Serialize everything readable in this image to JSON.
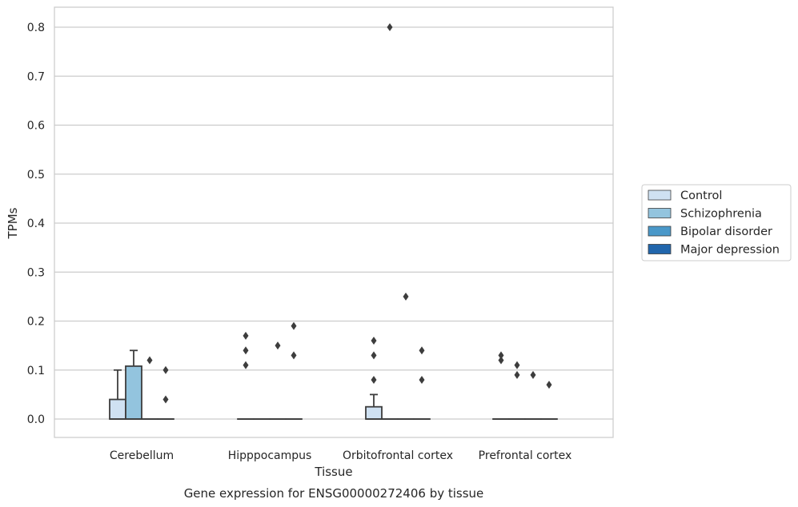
{
  "chart_data": {
    "type": "boxplot",
    "title": "",
    "caption": "Gene expression for ENSG00000272406 by tissue",
    "xlabel": "Tissue",
    "ylabel": "TPMs",
    "ylim": [
      -0.04,
      0.84
    ],
    "yticks": [
      "0.0",
      "0.1",
      "0.2",
      "0.3",
      "0.4",
      "0.5",
      "0.6",
      "0.7",
      "0.8"
    ],
    "grid": "horizontal",
    "legend_position": "right",
    "categories": [
      "Cerebellum",
      "Hipppocampus",
      "Orbitofrontal cortex",
      "Prefrontal cortex"
    ],
    "series": [
      {
        "name": "Control",
        "color": "#cfe1f2",
        "boxes": [
          {
            "q1": 0.0,
            "median": 0.0,
            "q3": 0.04,
            "whisker_low": 0.0,
            "whisker_high": 0.1,
            "outliers": []
          },
          {
            "q1": 0.0,
            "median": 0.0,
            "q3": 0.0,
            "whisker_low": 0.0,
            "whisker_high": 0.0,
            "outliers": [
              0.11,
              0.14,
              0.17
            ]
          },
          {
            "q1": 0.0,
            "median": 0.0,
            "q3": 0.025,
            "whisker_low": 0.0,
            "whisker_high": 0.05,
            "outliers": [
              0.08,
              0.13,
              0.16
            ]
          },
          {
            "q1": 0.0,
            "median": 0.0,
            "q3": 0.0,
            "whisker_low": 0.0,
            "whisker_high": 0.0,
            "outliers": [
              0.12,
              0.13
            ]
          }
        ]
      },
      {
        "name": "Schizophrenia",
        "color": "#93c4de",
        "boxes": [
          {
            "q1": 0.0,
            "median": 0.0,
            "q3": 0.108,
            "whisker_low": 0.0,
            "whisker_high": 0.14,
            "outliers": []
          },
          {
            "q1": 0.0,
            "median": 0.0,
            "q3": 0.0,
            "whisker_low": 0.0,
            "whisker_high": 0.0,
            "outliers": []
          },
          {
            "q1": 0.0,
            "median": 0.0,
            "q3": 0.0,
            "whisker_low": 0.0,
            "whisker_high": 0.0,
            "outliers": [
              0.8
            ]
          },
          {
            "q1": 0.0,
            "median": 0.0,
            "q3": 0.0,
            "whisker_low": 0.0,
            "whisker_high": 0.0,
            "outliers": [
              0.09,
              0.11
            ]
          }
        ]
      },
      {
        "name": "Bipolar disorder",
        "color": "#4a98c9",
        "boxes": [
          {
            "q1": 0.0,
            "median": 0.0,
            "q3": 0.0,
            "whisker_low": 0.0,
            "whisker_high": 0.0,
            "outliers": [
              0.12
            ]
          },
          {
            "q1": 0.0,
            "median": 0.0,
            "q3": 0.0,
            "whisker_low": 0.0,
            "whisker_high": 0.0,
            "outliers": [
              0.15
            ]
          },
          {
            "q1": 0.0,
            "median": 0.0,
            "q3": 0.0,
            "whisker_low": 0.0,
            "whisker_high": 0.0,
            "outliers": [
              0.25
            ]
          },
          {
            "q1": 0.0,
            "median": 0.0,
            "q3": 0.0,
            "whisker_low": 0.0,
            "whisker_high": 0.0,
            "outliers": [
              0.09
            ]
          }
        ]
      },
      {
        "name": "Major depression",
        "color": "#2166ac",
        "boxes": [
          {
            "q1": 0.0,
            "median": 0.0,
            "q3": 0.0,
            "whisker_low": 0.0,
            "whisker_high": 0.0,
            "outliers": [
              0.04,
              0.1
            ]
          },
          {
            "q1": 0.0,
            "median": 0.0,
            "q3": 0.0,
            "whisker_low": 0.0,
            "whisker_high": 0.0,
            "outliers": [
              0.13,
              0.19
            ]
          },
          {
            "q1": 0.0,
            "median": 0.0,
            "q3": 0.0,
            "whisker_low": 0.0,
            "whisker_high": 0.0,
            "outliers": [
              0.08,
              0.14
            ]
          },
          {
            "q1": 0.0,
            "median": 0.0,
            "q3": 0.0,
            "whisker_low": 0.0,
            "whisker_high": 0.0,
            "outliers": [
              0.07
            ]
          }
        ]
      }
    ]
  }
}
